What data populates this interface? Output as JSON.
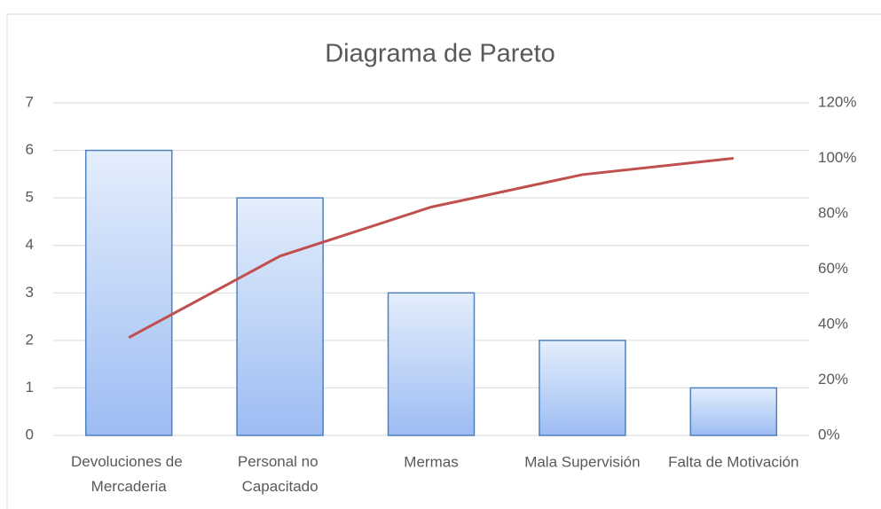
{
  "chart_data": {
    "type": "pareto",
    "title": "Diagrama de Pareto",
    "categories": [
      "Devoluciones de Mercaderia",
      "Personal no Capacitado",
      "Mermas",
      "Mala Supervisión",
      "Falta de Motivación"
    ],
    "series": [
      {
        "type": "bar",
        "color": "#4f81bd",
        "values": [
          6,
          5,
          3,
          2,
          1
        ]
      },
      {
        "type": "line",
        "color": "#c0504d",
        "axis": "y2",
        "values": [
          35.3,
          64.7,
          82.4,
          94.1,
          100
        ]
      }
    ],
    "ylim": [
      0,
      7
    ],
    "yticks": [
      0,
      1,
      2,
      3,
      4,
      5,
      6,
      7
    ],
    "y2lim": [
      0,
      120
    ],
    "y2ticks": [
      {
        "value": 0,
        "label": "0%"
      },
      {
        "value": 20,
        "label": "20%"
      },
      {
        "value": 40,
        "label": "40%"
      },
      {
        "value": 60,
        "label": "60%"
      },
      {
        "value": 80,
        "label": "80%"
      },
      {
        "value": 100,
        "label": "100%"
      },
      {
        "value": 120,
        "label": "120%"
      }
    ],
    "grid": true
  }
}
